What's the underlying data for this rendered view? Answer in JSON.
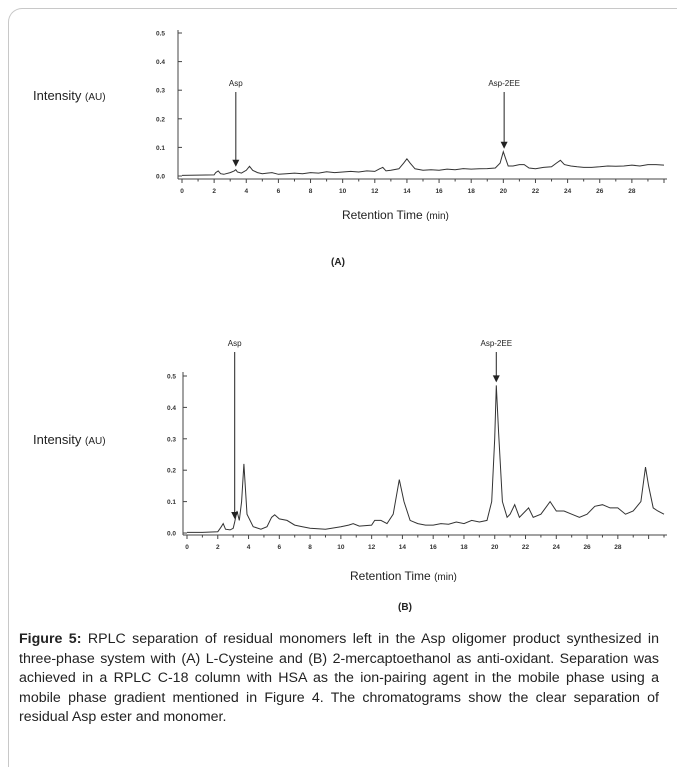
{
  "figure": {
    "caption_label": "Figure 5:",
    "caption_text": "RPLC separation of residual monomers left in the Asp oligomer product synthesized in three-phase system with (A) L-Cysteine and (B) 2-mercaptoethanol as anti-oxidant. Separation was achieved in a RPLC C-18 column with HSA as the ion-pairing agent in the mobile phase using a mobile phase gradient mentioned in Figure 4. The chromatograms show the clear separation of residual Asp ester and monomer."
  },
  "chart_data": [
    {
      "type": "line",
      "panel_label": "(A)",
      "ylabel_main": "Intensity",
      "ylabel_unit": "(AU)",
      "xlabel_main": "Retention Time",
      "xlabel_unit": "(min)",
      "xlim": [
        0,
        30
      ],
      "ylim": [
        0,
        0.5
      ],
      "x_ticks": [
        "0",
        "2",
        "4",
        "6",
        "8",
        "10",
        "12",
        "14",
        "16",
        "18",
        "20",
        "22",
        "24",
        "26",
        "28"
      ],
      "y_ticks": [
        "0.0",
        "0.1",
        "0.2",
        "0.3",
        "0.4",
        "0.5"
      ],
      "annotations": [
        {
          "text": "Asp",
          "x": 3.35,
          "y": 0.022
        },
        {
          "text": "Asp-2EE",
          "x": 20.05,
          "y": 0.085
        }
      ],
      "series": [
        {
          "x": [
            0,
            1,
            2,
            2.1,
            2.25,
            2.4,
            2.6,
            3.0,
            3.25,
            3.35,
            3.45,
            3.7,
            4.0,
            4.2,
            4.4,
            4.7,
            5.0,
            5.3,
            5.6,
            6.0,
            6.5,
            7.0,
            7.5,
            8.0,
            8.5,
            9.0,
            9.5,
            10.0,
            10.5,
            11.0,
            11.5,
            12.0,
            12.3,
            12.5,
            12.7,
            13.0,
            13.5,
            13.8,
            14.0,
            14.2,
            14.5,
            15.0,
            15.5,
            16.0,
            16.5,
            17.0,
            17.5,
            18.0,
            18.5,
            19.0,
            19.5,
            19.8,
            20.0,
            20.15,
            20.3,
            20.6,
            21.0,
            21.3,
            21.6,
            22.0,
            22.5,
            23.0,
            23.3,
            23.55,
            23.8,
            24.2,
            24.6,
            25.0,
            25.5,
            26.0,
            26.5,
            27.0,
            27.5,
            28.0,
            28.5,
            29.0,
            29.5,
            30.0
          ],
          "y": [
            0.002,
            0.003,
            0.004,
            0.012,
            0.018,
            0.008,
            0.006,
            0.012,
            0.018,
            0.022,
            0.014,
            0.01,
            0.02,
            0.034,
            0.02,
            0.012,
            0.008,
            0.01,
            0.012,
            0.006,
            0.008,
            0.01,
            0.008,
            0.012,
            0.01,
            0.015,
            0.012,
            0.014,
            0.016,
            0.014,
            0.018,
            0.016,
            0.025,
            0.03,
            0.018,
            0.02,
            0.025,
            0.045,
            0.06,
            0.045,
            0.025,
            0.02,
            0.022,
            0.02,
            0.024,
            0.022,
            0.026,
            0.024,
            0.025,
            0.026,
            0.028,
            0.045,
            0.085,
            0.06,
            0.035,
            0.035,
            0.04,
            0.04,
            0.028,
            0.025,
            0.03,
            0.032,
            0.045,
            0.055,
            0.04,
            0.035,
            0.032,
            0.03,
            0.03,
            0.032,
            0.035,
            0.034,
            0.035,
            0.038,
            0.035,
            0.04,
            0.04,
            0.038
          ]
        }
      ]
    },
    {
      "type": "line",
      "panel_label": "(B)",
      "ylabel_main": "Intensity",
      "ylabel_unit": "(AU)",
      "xlabel_main": "Retention Time",
      "xlabel_unit": "(min)",
      "xlim": [
        0,
        31
      ],
      "ylim": [
        0,
        0.5
      ],
      "x_ticks": [
        "0",
        "2",
        "4",
        "6",
        "8",
        "10",
        "12",
        "14",
        "16",
        "18",
        "20",
        "22",
        "24",
        "26",
        "28"
      ],
      "y_ticks": [
        "0.0",
        "0.1",
        "0.2",
        "0.3",
        "0.4",
        "0.5"
      ],
      "annotations": [
        {
          "text": "Asp",
          "x": 3.1,
          "y": 0.035
        },
        {
          "text": "Asp-2EE",
          "x": 20.1,
          "y": 0.47
        }
      ],
      "series": [
        {
          "x": [
            0,
            1,
            2.0,
            2.2,
            2.35,
            2.5,
            2.8,
            3.0,
            3.1,
            3.25,
            3.4,
            3.55,
            3.7,
            3.9,
            4.3,
            4.8,
            5.2,
            5.5,
            5.7,
            6.0,
            6.5,
            7.0,
            7.5,
            8.0,
            9.0,
            10.0,
            10.5,
            10.8,
            11.2,
            12.0,
            12.2,
            12.6,
            13.0,
            13.4,
            13.8,
            14.1,
            14.5,
            15.0,
            15.5,
            16.0,
            16.5,
            17.0,
            17.5,
            18.0,
            18.5,
            19.0,
            19.5,
            19.8,
            20.0,
            20.1,
            20.25,
            20.5,
            20.8,
            21.0,
            21.3,
            21.6,
            21.9,
            22.2,
            22.5,
            23.0,
            23.3,
            23.6,
            24.0,
            24.5,
            25.0,
            25.5,
            26.0,
            26.5,
            27.0,
            27.5,
            28.0,
            28.5,
            29.0,
            29.5,
            29.8,
            30.0,
            30.3,
            30.6,
            31.0
          ],
          "y": [
            0.002,
            0.002,
            0.004,
            0.018,
            0.03,
            0.012,
            0.01,
            0.015,
            0.035,
            0.07,
            0.04,
            0.1,
            0.22,
            0.06,
            0.02,
            0.012,
            0.02,
            0.05,
            0.058,
            0.045,
            0.04,
            0.025,
            0.02,
            0.015,
            0.012,
            0.02,
            0.025,
            0.03,
            0.022,
            0.025,
            0.04,
            0.04,
            0.03,
            0.06,
            0.17,
            0.1,
            0.04,
            0.03,
            0.025,
            0.025,
            0.03,
            0.028,
            0.035,
            0.03,
            0.04,
            0.035,
            0.04,
            0.1,
            0.3,
            0.47,
            0.32,
            0.1,
            0.05,
            0.06,
            0.09,
            0.05,
            0.065,
            0.08,
            0.05,
            0.06,
            0.08,
            0.1,
            0.07,
            0.07,
            0.06,
            0.05,
            0.06,
            0.085,
            0.09,
            0.08,
            0.08,
            0.06,
            0.07,
            0.1,
            0.21,
            0.15,
            0.08,
            0.07,
            0.06
          ]
        }
      ]
    }
  ]
}
